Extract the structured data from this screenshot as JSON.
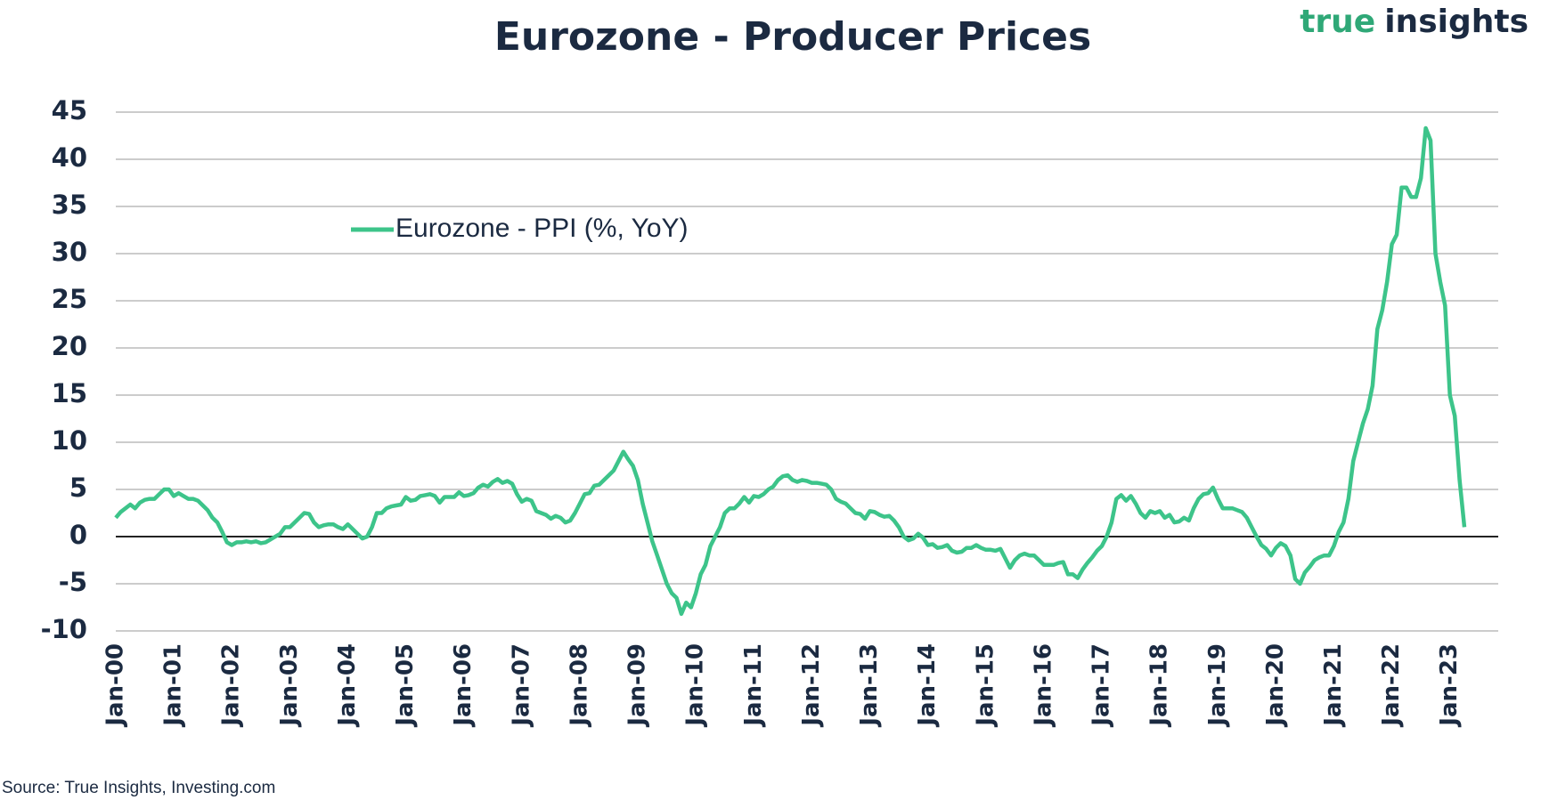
{
  "brand": [
    "true",
    "insights"
  ],
  "chart_data": {
    "type": "line",
    "title": "Eurozone - Producer Prices",
    "source": "Source: True Insights, Investing.com",
    "categories": [
      "Jan-00",
      null,
      null,
      null,
      null,
      null,
      null,
      null,
      null,
      null,
      null,
      null,
      "Jan-01",
      null,
      null,
      null,
      null,
      null,
      null,
      null,
      null,
      null,
      null,
      null,
      "Jan-02",
      null,
      null,
      null,
      null,
      null,
      null,
      null,
      null,
      null,
      null,
      null,
      "Jan-03",
      null,
      null,
      null,
      null,
      null,
      null,
      null,
      null,
      null,
      null,
      null,
      "Jan-04",
      null,
      null,
      null,
      null,
      null,
      null,
      null,
      null,
      null,
      null,
      null,
      "Jan-05",
      null,
      null,
      null,
      null,
      null,
      null,
      null,
      null,
      null,
      null,
      null,
      "Jan-06",
      null,
      null,
      null,
      null,
      null,
      null,
      null,
      null,
      null,
      null,
      null,
      "Jan-07",
      null,
      null,
      null,
      null,
      null,
      null,
      null,
      null,
      null,
      null,
      null,
      "Jan-08",
      null,
      null,
      null,
      null,
      null,
      null,
      null,
      null,
      null,
      null,
      null,
      "Jan-09",
      null,
      null,
      null,
      null,
      null,
      null,
      null,
      null,
      null,
      null,
      null,
      "Jan-10",
      null,
      null,
      null,
      null,
      null,
      null,
      null,
      null,
      null,
      null,
      null,
      "Jan-11",
      null,
      null,
      null,
      null,
      null,
      null,
      null,
      null,
      null,
      null,
      null,
      "Jan-12",
      null,
      null,
      null,
      null,
      null,
      null,
      null,
      null,
      null,
      null,
      null,
      "Jan-13",
      null,
      null,
      null,
      null,
      null,
      null,
      null,
      null,
      null,
      null,
      null,
      "Jan-14",
      null,
      null,
      null,
      null,
      null,
      null,
      null,
      null,
      null,
      null,
      null,
      "Jan-15",
      null,
      null,
      null,
      null,
      null,
      null,
      null,
      null,
      null,
      null,
      null,
      "Jan-16",
      null,
      null,
      null,
      null,
      null,
      null,
      null,
      null,
      null,
      null,
      null,
      "Jan-17",
      null,
      null,
      null,
      null,
      null,
      null,
      null,
      null,
      null,
      null,
      null,
      "Jan-18",
      null,
      null,
      null,
      null,
      null,
      null,
      null,
      null,
      null,
      null,
      null,
      "Jan-19",
      null,
      null,
      null,
      null,
      null,
      null,
      null,
      null,
      null,
      null,
      null,
      "Jan-20",
      null,
      null,
      null,
      null,
      null,
      null,
      null,
      null,
      null,
      null,
      null,
      "Jan-21",
      null,
      null,
      null,
      null,
      null,
      null,
      null,
      null,
      null,
      null,
      null,
      "Jan-22",
      null,
      null,
      null,
      null,
      null,
      null,
      null,
      null,
      null,
      null,
      null,
      "Jan-23",
      null,
      null,
      null
    ],
    "series": [
      {
        "name": "Eurozone - PPI (%, YoY)",
        "color": "#3dc48a",
        "values": [
          2.0,
          2.6,
          3.0,
          3.4,
          3.0,
          3.6,
          3.9,
          4.0,
          4.0,
          4.5,
          5.0,
          5.0,
          4.3,
          4.6,
          4.3,
          4.0,
          4.0,
          3.8,
          3.3,
          2.8,
          2.0,
          1.5,
          0.5,
          -0.6,
          -0.9,
          -0.6,
          -0.6,
          -0.5,
          -0.6,
          -0.5,
          -0.7,
          -0.6,
          -0.3,
          0.0,
          0.3,
          1.0,
          1.0,
          1.5,
          2.0,
          2.5,
          2.4,
          1.5,
          1.0,
          1.2,
          1.3,
          1.3,
          1.0,
          0.8,
          1.3,
          0.8,
          0.3,
          -0.2,
          0.0,
          1.0,
          2.5,
          2.5,
          3.0,
          3.2,
          3.3,
          3.4,
          4.2,
          3.8,
          3.9,
          4.3,
          4.4,
          4.5,
          4.3,
          3.6,
          4.2,
          4.2,
          4.2,
          4.7,
          4.3,
          4.4,
          4.6,
          5.2,
          5.5,
          5.3,
          5.8,
          6.1,
          5.7,
          5.9,
          5.6,
          4.5,
          3.7,
          4.0,
          3.8,
          2.7,
          2.5,
          2.3,
          1.9,
          2.2,
          2.0,
          1.5,
          1.7,
          2.5,
          3.5,
          4.5,
          4.6,
          5.4,
          5.5,
          6.0,
          6.5,
          7.0,
          8.0,
          9.0,
          8.2,
          7.5,
          6.0,
          3.5,
          1.5,
          -0.5,
          -2.0,
          -3.5,
          -5.0,
          -6.0,
          -6.5,
          -8.2,
          -7.0,
          -7.5,
          -6.0,
          -4.0,
          -3.0,
          -1.0,
          0.0,
          1.0,
          2.5,
          3.0,
          3.0,
          3.5,
          4.2,
          3.6,
          4.3,
          4.2,
          4.5,
          5.0,
          5.3,
          6.0,
          6.4,
          6.5,
          6.0,
          5.8,
          6.0,
          5.9,
          5.7,
          5.7,
          5.6,
          5.5,
          5.0,
          4.0,
          3.7,
          3.5,
          3.0,
          2.5,
          2.4,
          1.9,
          2.7,
          2.6,
          2.3,
          2.1,
          2.2,
          1.7,
          1.0,
          0.0,
          -0.4,
          -0.2,
          0.3,
          -0.1,
          -0.9,
          -0.8,
          -1.2,
          -1.1,
          -0.9,
          -1.5,
          -1.7,
          -1.6,
          -1.2,
          -1.2,
          -0.9,
          -1.2,
          -1.4,
          -1.4,
          -1.5,
          -1.3,
          -2.3,
          -3.3,
          -2.5,
          -2.0,
          -1.8,
          -2.0,
          -2.0,
          -2.5,
          -3.0,
          -3.0,
          -3.0,
          -2.8,
          -2.7,
          -4.0,
          -4.0,
          -4.4,
          -3.5,
          -2.8,
          -2.2,
          -1.5,
          -1.0,
          0.0,
          1.5,
          4.0,
          4.4,
          3.8,
          4.3,
          3.5,
          2.5,
          2.0,
          2.7,
          2.5,
          2.7,
          2.0,
          2.3,
          1.5,
          1.6,
          2.0,
          1.7,
          3.0,
          4.0,
          4.5,
          4.6,
          5.2,
          4.0,
          3.0,
          3.0,
          3.0,
          2.8,
          2.6,
          2.0,
          1.0,
          0.0,
          -0.9,
          -1.3,
          -2.0,
          -1.2,
          -0.7,
          -1.0,
          -2.0,
          -4.5,
          -5.0,
          -3.8,
          -3.2,
          -2.5,
          -2.2,
          -2.0,
          -2.0,
          -1.0,
          0.5,
          1.5,
          4.0,
          8.0,
          10.0,
          12.0,
          13.5,
          16.0,
          22.0,
          24.0,
          27.0,
          31.0,
          32.0,
          37.0,
          37.0,
          36.0,
          36.0,
          38.0,
          43.3,
          42.0,
          30.0,
          27.0,
          24.5,
          15.0,
          12.8,
          6.0,
          1.0
        ]
      }
    ],
    "ylim": [
      -10,
      45
    ],
    "yticks": [
      -10,
      -5,
      0,
      5,
      10,
      15,
      20,
      25,
      30,
      35,
      40,
      45
    ],
    "grid": true,
    "legend": "top-left"
  }
}
